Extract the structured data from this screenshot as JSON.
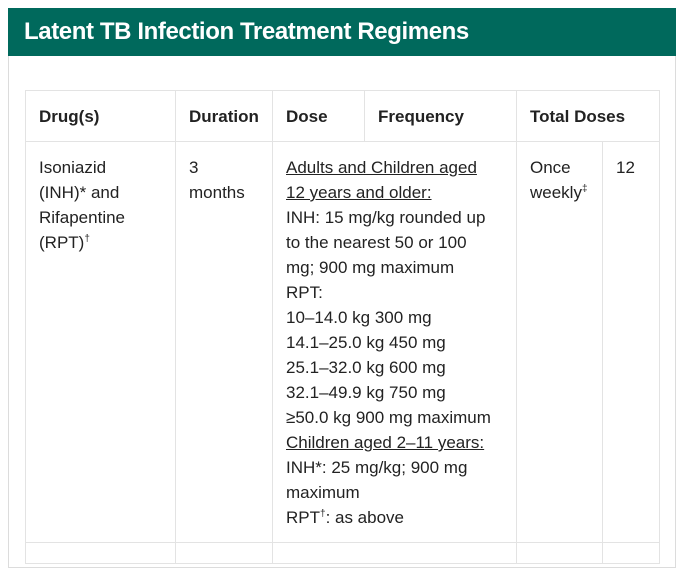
{
  "title": "Latent TB Infection Treatment Regimens",
  "table": {
    "headers": [
      "Drug(s)",
      "Duration",
      "Dose",
      "Frequency",
      "Total Doses"
    ],
    "row": {
      "drug_line1": "Isoniazid",
      "drug_line2": "(INH)* and",
      "drug_line3": "Rifapentine",
      "drug_line4": "(RPT)",
      "drug_mark": "†",
      "duration_line1": "3",
      "duration_line2": "months",
      "dose_adults_heading_1": "Adults and Children aged",
      "dose_adults_heading_2": "12 years and older:",
      "dose_inh_1": "INH: 15 mg/kg rounded up",
      "dose_inh_2": "to the nearest 50 or 100",
      "dose_inh_3": "mg; 900 mg maximum",
      "dose_rpt_label": "RPT:",
      "dose_rpt_1": "10–14.0 kg 300 mg",
      "dose_rpt_2": "14.1–25.0 kg 450 mg",
      "dose_rpt_3": "25.1–32.0 kg 600 mg",
      "dose_rpt_4": "32.1–49.9 kg 750 mg",
      "dose_rpt_5": "≥50.0 kg 900 mg maximum",
      "dose_children_heading": "Children aged 2–11 years:",
      "dose_child_inh_1": "INH*: 25 mg/kg; 900 mg",
      "dose_child_inh_2": "maximum",
      "dose_child_rpt_prefix": "RPT",
      "dose_child_rpt_mark": "†",
      "dose_child_rpt_suffix": ": as above",
      "frequency_line1": "Once",
      "frequency_line2": "weekly",
      "frequency_mark": "‡",
      "total_doses": "12"
    }
  },
  "colors": {
    "header_bg": "#00695c",
    "header_text": "#ffffff",
    "border": "#e3e3e3"
  }
}
